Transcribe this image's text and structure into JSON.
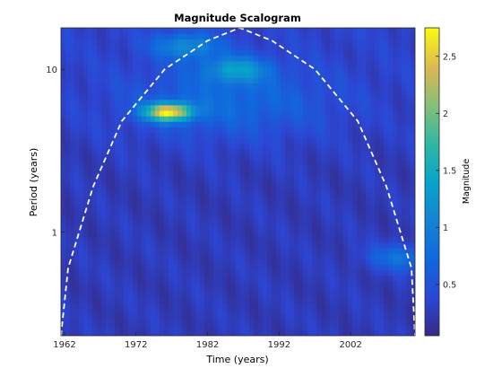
{
  "chart_data": {
    "type": "heatmap",
    "title": "Magnitude Scalogram",
    "xlabel": "Time (years)",
    "ylabel": "Period (years)",
    "x_ticks": [
      "1962",
      "1972",
      "1982",
      "1992",
      "2002"
    ],
    "x_tick_values": [
      1962,
      1972,
      1982,
      1992,
      2002
    ],
    "xlim": [
      1961.5,
      2011
    ],
    "y_scale": "log",
    "y_ticks": [
      "1",
      "10"
    ],
    "y_tick_values": [
      1,
      10
    ],
    "ylim": [
      0.23,
      18
    ],
    "colorbar": {
      "label": "Magnitude",
      "ticks": [
        "0.5",
        "1",
        "1.5",
        "2",
        "2.5"
      ],
      "tick_values": [
        0.5,
        1,
        1.5,
        2,
        2.5
      ],
      "range": [
        0.05,
        2.75
      ],
      "colormap": "parula"
    },
    "cone_of_influence": {
      "style": "white-dashed",
      "apex": {
        "x": 1986.5,
        "period": 18
      },
      "points": [
        {
          "x": 1961.5,
          "period": 0.23
        },
        {
          "x": 1962.5,
          "period": 0.6
        },
        {
          "x": 1966,
          "period": 1.9
        },
        {
          "x": 1970,
          "period": 4.8
        },
        {
          "x": 1976,
          "period": 10
        },
        {
          "x": 1982,
          "period": 15
        },
        {
          "x": 1986.5,
          "period": 18
        },
        {
          "x": 1991,
          "period": 15
        },
        {
          "x": 1997,
          "period": 10
        },
        {
          "x": 2003,
          "period": 4.8
        },
        {
          "x": 2007,
          "period": 1.9
        },
        {
          "x": 2010.5,
          "period": 0.6
        },
        {
          "x": 2011,
          "period": 0.23
        }
      ]
    },
    "features": [
      {
        "x": 1976.5,
        "period": 5.5,
        "magnitude": 2.6,
        "label": "peak"
      },
      {
        "x": 1986,
        "period": 10,
        "magnitude": 1.3
      },
      {
        "x": 1979,
        "period": 14,
        "magnitude": 1.2
      },
      {
        "x": 2009,
        "period": 0.7,
        "magnitude": 1.0
      }
    ]
  }
}
